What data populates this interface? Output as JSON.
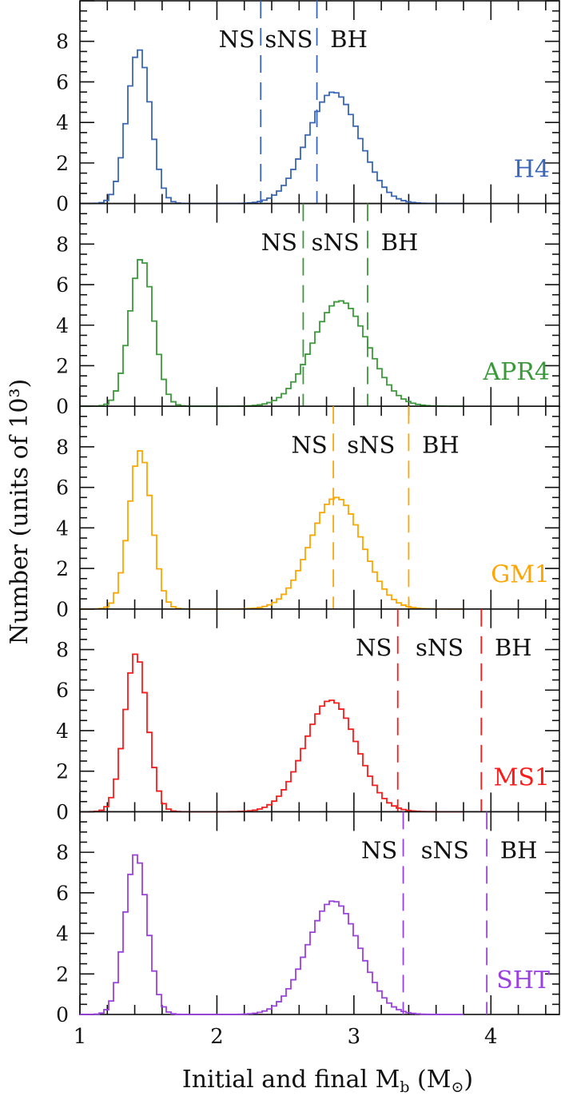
{
  "chart_data": {
    "type": "histogram",
    "xlabel": "Initial and final M_b (M_⊙)",
    "xlabel_parts": {
      "main": "Initial and final M",
      "sub": "b",
      "open": " (M",
      "sun": "⊙",
      "close": ")"
    },
    "ylabel": "Number (units of 10³)",
    "xlim": [
      1,
      4.5
    ],
    "ylim": [
      0,
      10
    ],
    "x_ticks": [
      1,
      2,
      3,
      4
    ],
    "x_tick_labels": [
      "1",
      "2",
      "3",
      "4"
    ],
    "y_ticks": [
      0,
      2,
      4,
      6,
      8
    ],
    "y_tick_labels": [
      "0",
      "2",
      "4",
      "6",
      "8"
    ],
    "bin_width": 0.035,
    "region_labels": [
      "NS",
      "sNS",
      "BH"
    ],
    "panels": [
      {
        "name": "H4",
        "color": "#3a66b8",
        "thresholds": [
          2.32,
          2.73
        ],
        "peaks": [
          {
            "center": 1.43,
            "height": 7.6,
            "sigma": 0.085
          },
          {
            "center": 2.85,
            "height": 5.5,
            "sigma": 0.19
          }
        ]
      },
      {
        "name": "APR4",
        "color": "#3a9a3a",
        "thresholds": [
          2.63,
          3.1
        ],
        "peaks": [
          {
            "center": 1.45,
            "height": 7.3,
            "sigma": 0.088
          },
          {
            "center": 2.9,
            "height": 5.2,
            "sigma": 0.2
          }
        ]
      },
      {
        "name": "GM1",
        "color": "#ffa500",
        "thresholds": [
          2.85,
          3.4
        ],
        "peaks": [
          {
            "center": 1.44,
            "height": 7.8,
            "sigma": 0.083
          },
          {
            "center": 2.87,
            "height": 5.5,
            "sigma": 0.19
          }
        ]
      },
      {
        "name": "MS1",
        "color": "#ff1a1a",
        "thresholds": [
          3.32,
          3.93
        ],
        "peaks": [
          {
            "center": 1.41,
            "height": 7.8,
            "sigma": 0.083
          },
          {
            "center": 2.83,
            "height": 5.5,
            "sigma": 0.19
          }
        ]
      },
      {
        "name": "SHT",
        "color": "#9b40e0",
        "thresholds": [
          3.36,
          3.97
        ],
        "peaks": [
          {
            "center": 1.41,
            "height": 7.9,
            "sigma": 0.082
          },
          {
            "center": 2.85,
            "height": 5.6,
            "sigma": 0.19
          }
        ]
      }
    ]
  }
}
